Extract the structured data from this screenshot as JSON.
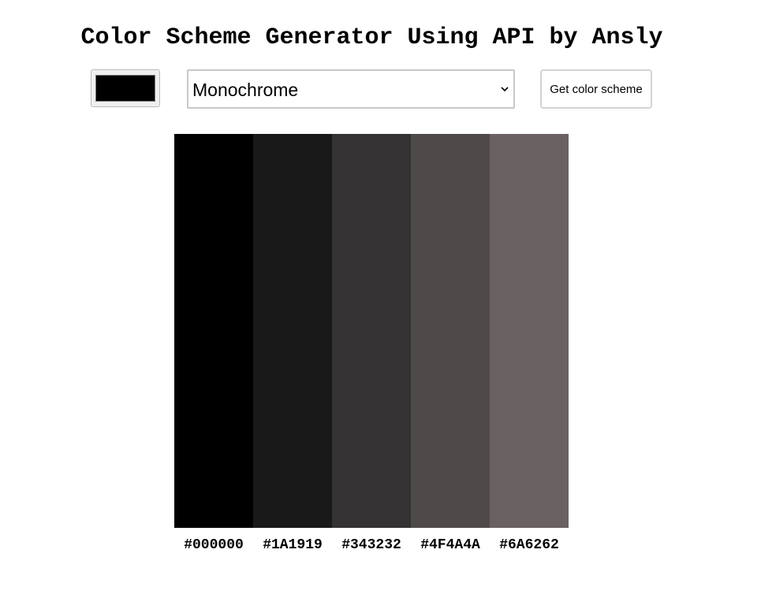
{
  "title": "Color Scheme Generator Using API by Ansly",
  "controls": {
    "seed_color": "#000000",
    "mode_selected": "Monochrome",
    "button_label": "Get color scheme"
  },
  "scheme": {
    "colors": [
      {
        "hex": "#000000",
        "label": "#000000"
      },
      {
        "hex": "#1A1919",
        "label": "#1A1919"
      },
      {
        "hex": "#343232",
        "label": "#343232"
      },
      {
        "hex": "#4F4A4A",
        "label": "#4F4A4A"
      },
      {
        "hex": "#6A6262",
        "label": "#6A6262"
      }
    ]
  },
  "icons": {
    "select_arrow": "chevron-down-icon"
  }
}
